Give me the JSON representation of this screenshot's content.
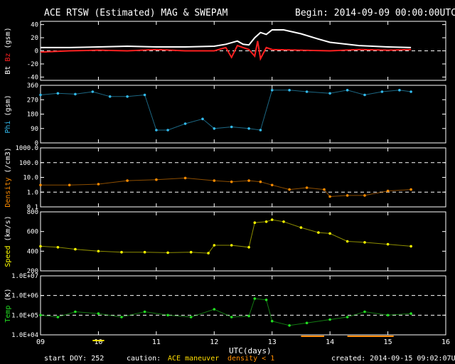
{
  "header": {
    "title": "ACE RTSW (Estimated) MAG & SWEPAM",
    "begin": "Begin: 2014-09-09 00:00:00UTC"
  },
  "footer": {
    "start_doy": "start DOY: 252",
    "caution_label": "caution:",
    "maneuver_label": "ACE maneuver",
    "density_label": "density < 1",
    "created": "created: 2014-09-15 09:02:07UTC",
    "xlabel": "UTC(days)"
  },
  "colors": {
    "bt": "#ffffff",
    "bz": "#ff2020",
    "phi": "#33bbee",
    "density": "#ff8c00",
    "speed": "#ffff00",
    "temp": "#22dd22",
    "maneuver": "#ffdd00",
    "low_density": "#ff8c00",
    "grid": "#ffffff"
  },
  "chart_data": [
    {
      "type": "line",
      "panel": "mag",
      "ylabel_a": "Bt",
      "ylabel_b": "Bz",
      "ylabel_unit": "(gsm)",
      "yticks": [
        "40",
        "20",
        "0",
        "-20",
        "-40"
      ],
      "ylim": [
        -45,
        45
      ],
      "dashed_at": [
        0
      ],
      "series": [
        {
          "name": "Bt",
          "color": "#ffffff",
          "x": [
            9.0,
            9.5,
            10.0,
            10.5,
            11.0,
            11.5,
            12.0,
            12.2,
            12.4,
            12.5,
            12.6,
            12.7,
            12.8,
            12.9,
            13.0,
            13.2,
            13.5,
            13.8,
            14.0,
            14.5,
            15.0,
            15.4
          ],
          "y": [
            5,
            5,
            6,
            7,
            6,
            6,
            7,
            10,
            15,
            10,
            9,
            20,
            28,
            25,
            32,
            32,
            26,
            18,
            13,
            8,
            6,
            5
          ]
        },
        {
          "name": "Bz",
          "color": "#ff2020",
          "x": [
            9.0,
            9.5,
            10.0,
            10.5,
            11.0,
            11.5,
            12.0,
            12.2,
            12.3,
            12.4,
            12.6,
            12.7,
            12.75,
            12.8,
            12.9,
            13.0,
            13.5,
            14.0,
            14.5,
            15.0,
            15.4
          ],
          "y": [
            -2,
            0,
            1,
            0,
            2,
            0,
            0,
            5,
            -10,
            8,
            2,
            -8,
            15,
            -12,
            5,
            2,
            1,
            0,
            2,
            1,
            2
          ]
        }
      ]
    },
    {
      "type": "scatter",
      "panel": "phi",
      "ylabel": "Phi (gsm)",
      "yticks": [
        "360",
        "270",
        "180",
        "90",
        "0"
      ],
      "ylim": [
        0,
        360
      ],
      "dashed_at": [],
      "series": [
        {
          "name": "Phi",
          "color": "#33bbee",
          "x": [
            9.0,
            9.3,
            9.6,
            9.9,
            10.2,
            10.5,
            10.8,
            11.0,
            11.2,
            11.5,
            11.8,
            12.0,
            12.3,
            12.6,
            12.8,
            13.0,
            13.3,
            13.6,
            14.0,
            14.3,
            14.6,
            14.9,
            15.2,
            15.4
          ],
          "y": [
            300,
            310,
            305,
            320,
            290,
            290,
            300,
            80,
            80,
            120,
            150,
            90,
            100,
            90,
            80,
            330,
            330,
            320,
            310,
            330,
            300,
            320,
            330,
            320
          ]
        }
      ]
    },
    {
      "type": "scatter",
      "panel": "density",
      "ylabel": "Density (/cm3)",
      "yticks": [
        "1000.0",
        "100.0",
        "10.0",
        "1.0",
        "0.1"
      ],
      "scale": "log",
      "ylim": [
        0.1,
        1000
      ],
      "dashed_at": [
        100,
        1
      ],
      "series": [
        {
          "name": "Density",
          "color": "#ff8c00",
          "x": [
            9.0,
            9.5,
            10.0,
            10.5,
            11.0,
            11.5,
            12.0,
            12.3,
            12.6,
            12.8,
            13.0,
            13.3,
            13.6,
            13.9,
            14.0,
            14.3,
            14.6,
            15.0,
            15.4
          ],
          "y": [
            3,
            3,
            3.5,
            6,
            7,
            9,
            6,
            5,
            6,
            5,
            3,
            1.5,
            2,
            1.5,
            0.5,
            0.6,
            0.6,
            1.2,
            1.5
          ]
        }
      ]
    },
    {
      "type": "scatter",
      "panel": "speed",
      "ylabel": "Speed (km/s)",
      "yticks": [
        "800",
        "600",
        "400",
        "200"
      ],
      "ylim": [
        200,
        800
      ],
      "dashed_at": [],
      "series": [
        {
          "name": "Speed",
          "color": "#ffff00",
          "x": [
            9.0,
            9.3,
            9.6,
            10.0,
            10.4,
            10.8,
            11.2,
            11.6,
            11.9,
            12.0,
            12.3,
            12.6,
            12.7,
            12.9,
            13.0,
            13.2,
            13.5,
            13.8,
            14.0,
            14.3,
            14.6,
            15.0,
            15.4
          ],
          "y": [
            450,
            440,
            420,
            400,
            390,
            390,
            385,
            390,
            380,
            460,
            460,
            440,
            690,
            700,
            720,
            700,
            640,
            590,
            580,
            500,
            490,
            470,
            450
          ]
        }
      ]
    },
    {
      "type": "scatter",
      "panel": "temp",
      "ylabel": "Temp (K)",
      "yticks": [
        "1.0E+07",
        "1.0E+06",
        "1.0E+05",
        "1.0E+04"
      ],
      "scale": "log",
      "ylim": [
        10000,
        10000000
      ],
      "dashed_at": [
        1000000,
        100000
      ],
      "series": [
        {
          "name": "Temp",
          "color": "#22dd22",
          "x": [
            9.0,
            9.3,
            9.6,
            10.0,
            10.4,
            10.8,
            11.2,
            11.6,
            12.0,
            12.3,
            12.6,
            12.7,
            12.9,
            13.0,
            13.3,
            13.6,
            14.0,
            14.3,
            14.6,
            15.0,
            15.4
          ],
          "y": [
            100000,
            80000,
            150000,
            120000,
            80000,
            150000,
            100000,
            80000,
            200000,
            80000,
            90000,
            700000,
            600000,
            50000,
            30000,
            40000,
            60000,
            80000,
            150000,
            100000,
            120000
          ]
        }
      ]
    }
  ],
  "xaxis": {
    "xlim": [
      9,
      16
    ],
    "ticks": [
      "09",
      "10",
      "11",
      "12",
      "13",
      "14",
      "15",
      "16"
    ],
    "maneuver_ranges": [
      [
        9.9,
        10.1
      ]
    ],
    "low_density_ranges": [
      [
        13.5,
        13.9
      ],
      [
        14.3,
        15.1
      ]
    ]
  }
}
